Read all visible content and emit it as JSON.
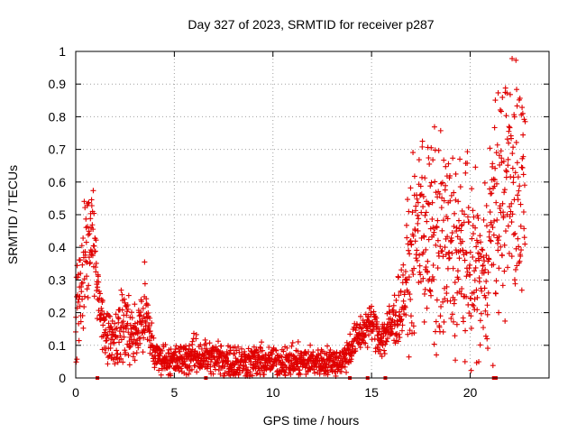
{
  "chart_data": {
    "type": "scatter",
    "title": "Day 327 of 2023, SRMTID for receiver p287",
    "xlabel": "GPS time / hours",
    "ylabel": "SRMTID / TECUs",
    "xlim": [
      0,
      24
    ],
    "ylim": [
      0,
      1
    ],
    "xticks": [
      0,
      5,
      10,
      15,
      20
    ],
    "yticks": [
      0,
      0.1,
      0.2,
      0.3,
      0.4,
      0.5,
      0.6,
      0.7,
      0.8,
      0.9,
      1
    ],
    "xtick_labels": [
      "0",
      "5",
      "10",
      "15",
      "20"
    ],
    "ytick_labels": [
      "0",
      "0.1",
      "0.2",
      "0.3",
      "0.4",
      "0.5",
      "0.6",
      "0.7",
      "0.8",
      "0.9",
      "1"
    ],
    "grid": true,
    "marker": "+",
    "color": "#e00000",
    "series": [
      {
        "name": "SRMTID",
        "profile": [
          {
            "x": 0.0,
            "y": 0.2,
            "spread": 0.15
          },
          {
            "x": 0.4,
            "y": 0.35,
            "spread": 0.18
          },
          {
            "x": 0.8,
            "y": 0.45,
            "spread": 0.15
          },
          {
            "x": 1.1,
            "y": 0.3,
            "spread": 0.08
          },
          {
            "x": 1.4,
            "y": 0.15,
            "spread": 0.07
          },
          {
            "x": 2.0,
            "y": 0.12,
            "spread": 0.07
          },
          {
            "x": 2.5,
            "y": 0.17,
            "spread": 0.12
          },
          {
            "x": 3.0,
            "y": 0.12,
            "spread": 0.07
          },
          {
            "x": 3.5,
            "y": 0.2,
            "spread": 0.12
          },
          {
            "x": 4.0,
            "y": 0.07,
            "spread": 0.04
          },
          {
            "x": 5.0,
            "y": 0.05,
            "spread": 0.04
          },
          {
            "x": 6.0,
            "y": 0.07,
            "spread": 0.05
          },
          {
            "x": 8.0,
            "y": 0.05,
            "spread": 0.05
          },
          {
            "x": 10.0,
            "y": 0.05,
            "spread": 0.04
          },
          {
            "x": 12.0,
            "y": 0.05,
            "spread": 0.04
          },
          {
            "x": 13.5,
            "y": 0.05,
            "spread": 0.04
          },
          {
            "x": 14.0,
            "y": 0.1,
            "spread": 0.05
          },
          {
            "x": 14.5,
            "y": 0.14,
            "spread": 0.05
          },
          {
            "x": 15.0,
            "y": 0.17,
            "spread": 0.05
          },
          {
            "x": 15.5,
            "y": 0.12,
            "spread": 0.06
          },
          {
            "x": 16.0,
            "y": 0.16,
            "spread": 0.07
          },
          {
            "x": 16.5,
            "y": 0.22,
            "spread": 0.1
          },
          {
            "x": 17.0,
            "y": 0.35,
            "spread": 0.2
          },
          {
            "x": 17.5,
            "y": 0.5,
            "spread": 0.25
          },
          {
            "x": 18.0,
            "y": 0.4,
            "spread": 0.3
          },
          {
            "x": 19.0,
            "y": 0.4,
            "spread": 0.28
          },
          {
            "x": 20.0,
            "y": 0.35,
            "spread": 0.25
          },
          {
            "x": 20.7,
            "y": 0.3,
            "spread": 0.2
          },
          {
            "x": 21.0,
            "y": 0.45,
            "spread": 0.3
          },
          {
            "x": 21.5,
            "y": 0.55,
            "spread": 0.3
          },
          {
            "x": 22.0,
            "y": 0.6,
            "spread": 0.32
          },
          {
            "x": 22.8,
            "y": 0.6,
            "spread": 0.35
          }
        ],
        "zero_markers": [
          1.1,
          6.6,
          13.9,
          14.8,
          15.7,
          21.2,
          21.3
        ]
      }
    ]
  }
}
